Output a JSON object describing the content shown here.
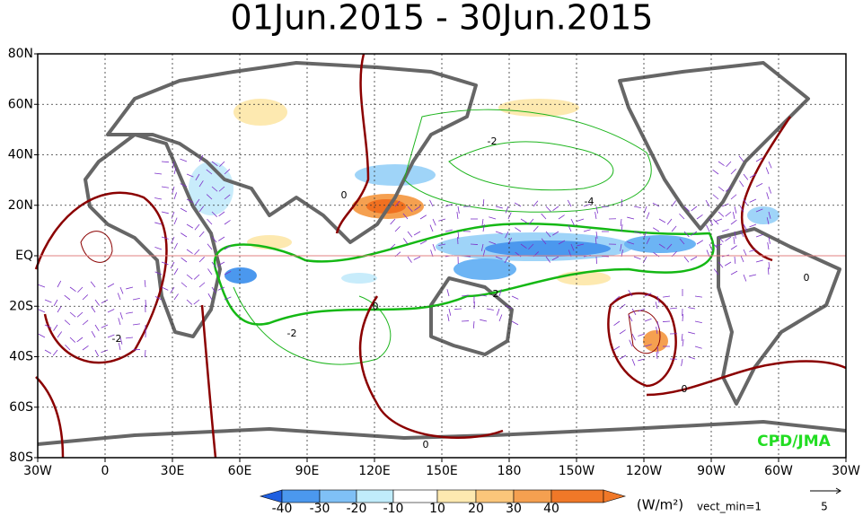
{
  "title": "01Jun.2015 - 30Jun.2015",
  "x_axis": [
    "30W",
    "0",
    "30E",
    "60E",
    "90E",
    "120E",
    "150E",
    "180",
    "150W",
    "120W",
    "90W",
    "60W",
    "30W"
  ],
  "y_axis": [
    "80N",
    "60N",
    "40N",
    "20N",
    "EQ",
    "20S",
    "40S",
    "60S",
    "80S"
  ],
  "colorbar": {
    "labels": [
      "-40",
      "-30",
      "-20",
      "-10",
      "10",
      "20",
      "30",
      "40"
    ],
    "unit": "(W/m²)"
  },
  "vector_note": "vect_min=1",
  "vector_scale": "5",
  "contour_labels": [
    "-2",
    "0",
    "-4",
    "-2",
    "-2",
    "0",
    "0",
    "0",
    "0",
    "-2"
  ],
  "credit": "CPD/JMA"
}
